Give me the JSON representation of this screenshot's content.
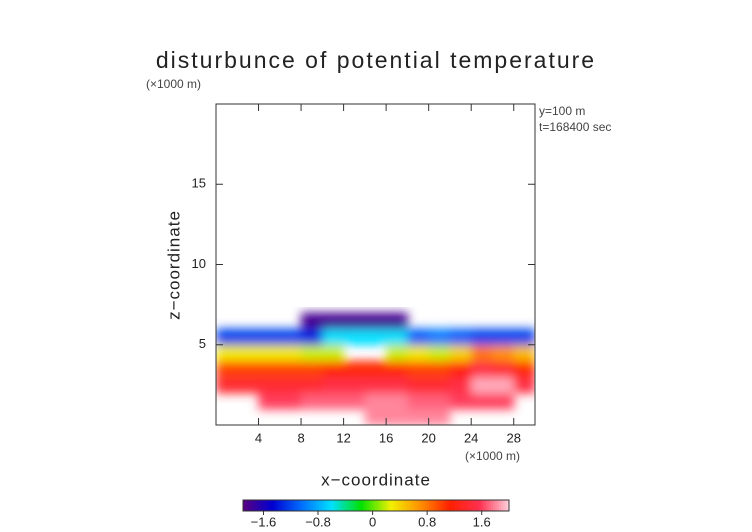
{
  "chart_data": {
    "type": "heatmap",
    "title": "disturbunce of potential temperature",
    "y_unit": "(×1000 m)",
    "x_unit": "(×1000 m)",
    "annotations": [
      "y=100 m",
      "t=168400 sec"
    ],
    "xlabel": "x−coordinate",
    "ylabel": "z−coordinate",
    "xlim": [
      0,
      30
    ],
    "ylim": [
      0,
      20
    ],
    "xticks": [
      4,
      8,
      12,
      16,
      20,
      24,
      28
    ],
    "yticks": [
      5,
      10,
      15
    ],
    "x": [
      1,
      3,
      5,
      7,
      9,
      11,
      13,
      15,
      17,
      19,
      21,
      23,
      25,
      27,
      29
    ],
    "z": [
      0.5,
      1.5,
      2.5,
      3.5,
      4.5,
      5.5,
      6.5
    ],
    "values": [
      [
        null,
        null,
        null,
        null,
        null,
        null,
        null,
        1.8,
        1.8,
        1.8,
        1.8,
        null,
        null,
        null,
        null
      ],
      [
        null,
        null,
        1.6,
        1.6,
        1.7,
        1.7,
        1.7,
        1.8,
        1.8,
        1.7,
        1.7,
        1.6,
        1.6,
        1.6,
        null
      ],
      [
        1.4,
        1.4,
        1.4,
        1.4,
        1.4,
        1.5,
        1.5,
        1.5,
        1.5,
        1.4,
        1.4,
        1.5,
        1.9,
        1.9,
        1.5
      ],
      [
        1.0,
        1.0,
        1.0,
        1.0,
        1.0,
        1.1,
        1.1,
        1.1,
        1.1,
        1.0,
        1.0,
        1.2,
        1.5,
        1.4,
        1.1
      ],
      [
        0.3,
        0.3,
        0.3,
        0.3,
        0.2,
        0.2,
        null,
        null,
        0.2,
        0.3,
        0.2,
        0.4,
        0.8,
        0.7,
        0.5
      ],
      [
        -1.2,
        -1.2,
        -1.2,
        -1.2,
        -1.3,
        -0.6,
        -0.6,
        -0.6,
        -0.6,
        -1.1,
        -1.0,
        -1.1,
        -1.2,
        -1.2,
        -1.2
      ],
      [
        null,
        null,
        null,
        null,
        -1.8,
        -1.8,
        -1.8,
        -1.8,
        -1.8,
        null,
        null,
        null,
        null,
        null,
        null
      ]
    ],
    "colormap": [
      "#5a0080",
      "#0000d0",
      "#0070ff",
      "#00e0ff",
      "#00e000",
      "#f0f000",
      "#ff9000",
      "#ff2000",
      "#ff3050",
      "#ffd0dc"
    ],
    "clim": [
      -1.9,
      2.0
    ],
    "colorbar_ticks": [
      {
        "value": -1.6,
        "label": "−1.6"
      },
      {
        "value": -0.8,
        "label": "−0.8"
      },
      0,
      0.8,
      1.6
    ]
  }
}
